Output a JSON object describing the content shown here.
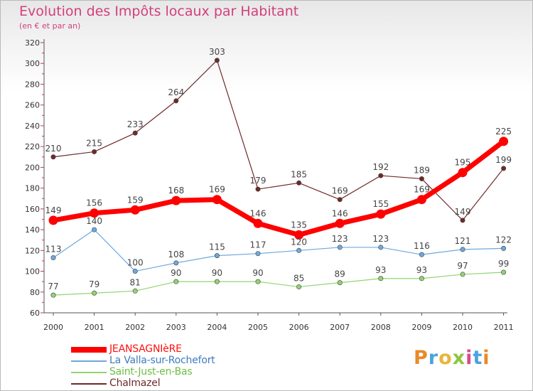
{
  "title": "Evolution des Impôts locaux par Habitant",
  "subtitle": "(en € et par an)",
  "brand": "Proxiti",
  "chart_data": {
    "type": "line",
    "x": [
      "2000",
      "2001",
      "2002",
      "2003",
      "2004",
      "2005",
      "2006",
      "2007",
      "2008",
      "2009",
      "2010",
      "2011"
    ],
    "ylim": [
      60,
      320
    ],
    "yticks": [
      60,
      80,
      100,
      120,
      140,
      160,
      180,
      200,
      220,
      240,
      260,
      280,
      300,
      320
    ],
    "grid": false,
    "legend_position": "bottom-left",
    "series": [
      {
        "name": "JEANSAGNIèRE",
        "color": "#ff0000",
        "values": [
          149,
          156,
          159,
          168,
          169,
          146,
          135,
          146,
          155,
          169,
          195,
          225
        ]
      },
      {
        "name": "La Valla-sur-Rochefort",
        "color": "#6fa8dc",
        "values": [
          113,
          140,
          100,
          108,
          115,
          117,
          120,
          123,
          123,
          116,
          121,
          122
        ]
      },
      {
        "name": "Saint-Just-en-Bas",
        "color": "#93d372",
        "values": [
          77,
          79,
          81,
          90,
          90,
          90,
          85,
          89,
          93,
          93,
          97,
          99
        ]
      },
      {
        "name": "Chalmazel",
        "color": "#6e2a2a",
        "values": [
          210,
          215,
          233,
          264,
          303,
          179,
          185,
          169,
          192,
          189,
          149,
          199
        ]
      }
    ]
  }
}
